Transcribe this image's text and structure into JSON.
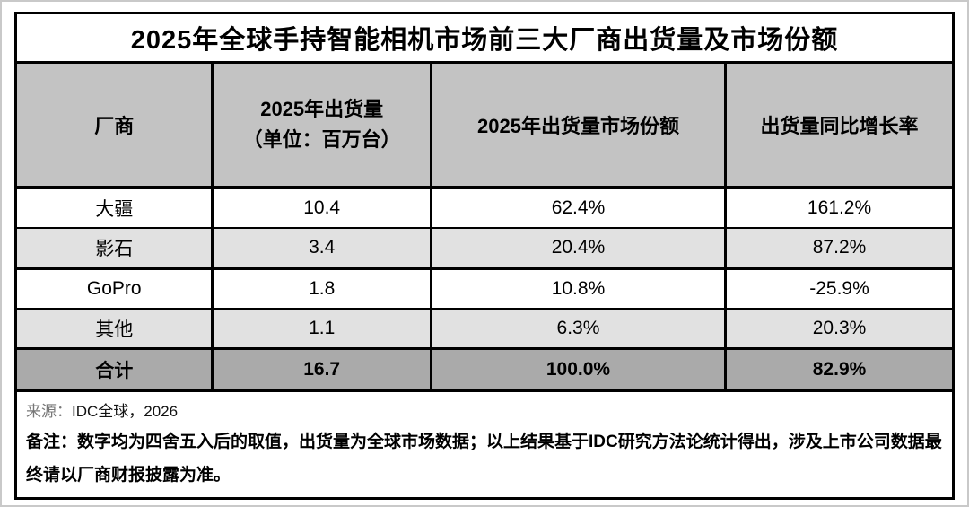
{
  "chart_data": {
    "type": "table",
    "title": "2025年全球手持智能相机市场前三大厂商出货量及市场份额",
    "columns": [
      "厂商",
      "2025年出货量（单位：百万台）",
      "2025年出货量市场份额",
      "出货量同比增长率"
    ],
    "header_display": {
      "vendor": "厂商",
      "shipments_line1": "2025年出货量",
      "shipments_line2": "（单位：百万台）",
      "share": "2025年出货量市场份额",
      "growth": "出货量同比增长率"
    },
    "shipments_unit": "百万台",
    "rows": [
      {
        "vendor": "大疆",
        "shipments": "10.4",
        "share": "62.4%",
        "growth": "161.2%"
      },
      {
        "vendor": "影石",
        "shipments": "3.4",
        "share": "20.4%",
        "growth": "87.2%"
      },
      {
        "vendor": "GoPro",
        "shipments": "1.8",
        "share": "10.8%",
        "growth": "-25.9%"
      },
      {
        "vendor": "其他",
        "shipments": "1.1",
        "share": "6.3%",
        "growth": "20.3%"
      },
      {
        "vendor": "合计",
        "shipments": "16.7",
        "share": "100.0%",
        "growth": "82.9%"
      }
    ]
  },
  "footer": {
    "source_label": "来源：",
    "source_value": "IDC全球，2026",
    "note": "备注：数字均为四舍五入后的取值，出货量为全球市场数据；以上结果基于IDC研究方法论统计得出，涉及上市公司数据最终请以厂商财报披露为准。"
  },
  "colors": {
    "border": "#000000",
    "canvas_border": "#c9c9c9",
    "header_bg": "#c3c3c3",
    "row_alt_bg": "#e1e1e1",
    "total_row_bg": "#aaaaaa",
    "text": "#000000",
    "source_label_text": "#777777"
  }
}
